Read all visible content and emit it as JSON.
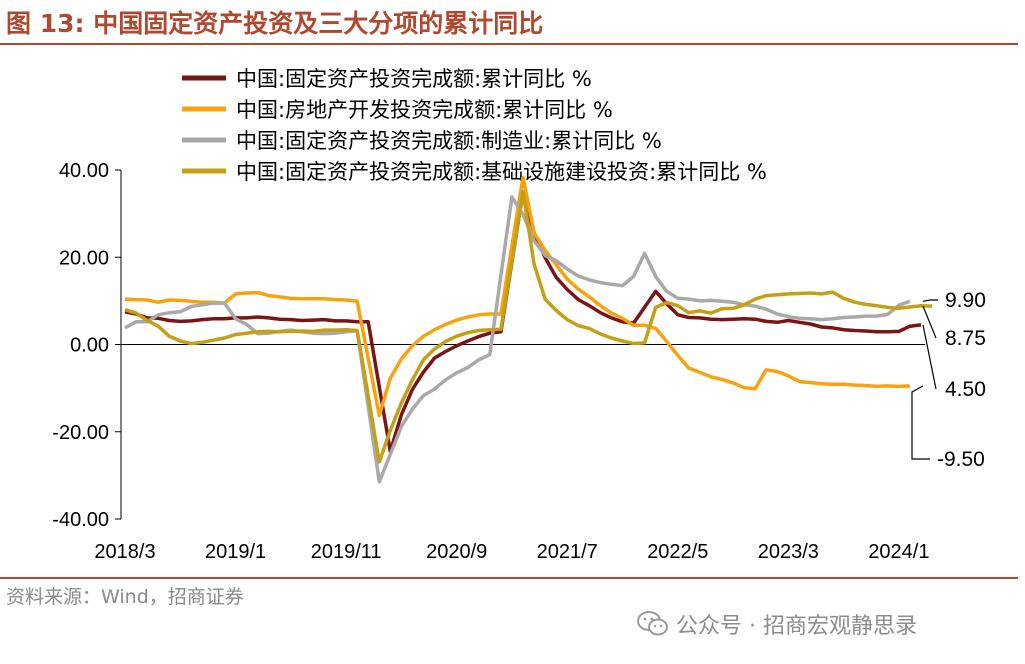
{
  "header": {
    "title": "图 13:  中国固定资产投资及三大分项的累计同比"
  },
  "footer": {
    "source": "资料来源：Wind，招商证券"
  },
  "watermark": {
    "text": "公众号 · 招商宏观静思录",
    "icon": "wechat-icon"
  },
  "colors": {
    "accent": "#B0482F",
    "fai": "#7B1416",
    "real_estate": "#F7A20E",
    "manufacturing": "#A9A9A9",
    "infrastructure": "#C4A014"
  },
  "chart_data": {
    "type": "line",
    "title": "",
    "xlabel": "",
    "ylabel": "",
    "ylim": [
      -40,
      40
    ],
    "yticks": [
      "40.00",
      "20.00",
      "0.00",
      "-20.00",
      "-40.00"
    ],
    "yticks_values": [
      40,
      20,
      0,
      -20,
      -40
    ],
    "xtick_labels": [
      "2018/3",
      "2019/1",
      "2019/11",
      "2020/9",
      "2021/7",
      "2022/5",
      "2023/3",
      "2024/1"
    ],
    "x_start": "2018/3",
    "x_end": "2024/4",
    "grid": false,
    "legend": "top",
    "end_labels": [
      "9.90",
      "8.75",
      "4.50",
      "-9.50"
    ],
    "series": [
      {
        "name": "中国:固定资产投资完成额:累计同比 %",
        "color": "#7B1416",
        "values": [
          7.5,
          7.0,
          6.1,
          6.0,
          5.5,
          5.3,
          5.4,
          5.7,
          5.9,
          5.9,
          6.1,
          6.1,
          6.3,
          6.1,
          5.8,
          5.7,
          5.5,
          5.6,
          5.7,
          5.4,
          5.4,
          5.2,
          5.2,
          null,
          -24.5,
          -16.1,
          -10.3,
          -6.3,
          -3.1,
          -1.6,
          -0.3,
          0.8,
          1.8,
          2.6,
          2.9,
          null,
          35.0,
          25.6,
          19.9,
          15.4,
          12.6,
          10.3,
          8.9,
          7.3,
          6.1,
          5.2,
          4.9,
          null,
          12.2,
          9.3,
          6.8,
          6.2,
          6.1,
          5.8,
          5.7,
          5.8,
          5.9,
          5.8,
          5.3,
          5.1,
          5.5,
          5.1,
          4.7,
          4.0,
          3.8,
          3.4,
          3.2,
          3.1,
          2.9,
          2.9,
          3.0,
          4.2,
          4.5
        ],
        "end_label": "4.50"
      },
      {
        "name": "中国:房地产开发投资完成额:累计同比 %",
        "color": "#F7A20E",
        "values": [
          10.4,
          10.3,
          10.2,
          9.7,
          10.2,
          10.1,
          9.9,
          9.7,
          9.7,
          9.5,
          11.6,
          11.8,
          11.9,
          11.2,
          10.9,
          10.6,
          10.5,
          10.5,
          10.5,
          10.3,
          10.2,
          9.9,
          null,
          -16.3,
          -7.7,
          -3.3,
          -0.3,
          1.9,
          3.4,
          4.6,
          5.6,
          6.3,
          6.8,
          7.0,
          7.0,
          null,
          38.3,
          25.6,
          21.6,
          18.3,
          15.0,
          12.7,
          10.9,
          8.9,
          7.2,
          6.0,
          4.4,
          4.4,
          3.7,
          0.7,
          -2.5,
          -5.4,
          -6.4,
          -7.4,
          -8.0,
          -8.8,
          -9.9,
          -10.1,
          -5.8,
          -6.2,
          -7.2,
          -8.5,
          -8.7,
          -9.0,
          -9.1,
          -9.1,
          -9.3,
          -9.4,
          -9.6,
          -9.5,
          -9.6,
          -9.5
        ],
        "end_label": "-9.50"
      },
      {
        "name": "中国:固定资产投资完成额:制造业:累计同比 %",
        "color": "#A9A9A9",
        "values": [
          3.8,
          5.2,
          5.2,
          6.8,
          7.3,
          7.5,
          8.7,
          9.1,
          9.5,
          9.5,
          5.9,
          4.6,
          2.5,
          2.6,
          3.0,
          3.3,
          2.9,
          2.6,
          2.5,
          2.6,
          2.9,
          3.1,
          null,
          -31.5,
          -25.2,
          -18.8,
          -14.8,
          -11.7,
          -10.2,
          -8.1,
          -6.5,
          -5.3,
          -3.5,
          -2.3,
          null,
          33.8,
          29.8,
          23.8,
          20.4,
          19.2,
          17.3,
          15.7,
          14.8,
          14.2,
          13.8,
          13.5,
          15.6,
          20.9,
          15.6,
          12.2,
          10.6,
          10.4,
          10.0,
          10.1,
          9.9,
          9.7,
          9.1,
          8.8,
          8.1,
          7.0,
          6.4,
          6.0,
          5.9,
          5.7,
          5.9,
          6.2,
          6.3,
          6.5,
          6.5,
          6.9,
          9.0,
          9.9
        ],
        "end_label": "9.90"
      },
      {
        "name": "中国:固定资产投资完成额:基础设施建设投资:累计同比 %",
        "color": "#C4A014",
        "values": [
          8.0,
          7.2,
          5.5,
          4.2,
          1.9,
          0.8,
          0.2,
          0.5,
          1.0,
          1.5,
          2.3,
          2.6,
          2.9,
          3.0,
          2.9,
          3.0,
          3.1,
          3.0,
          3.3,
          3.3,
          3.4,
          3.2,
          null,
          -26.9,
          -19.7,
          -13.4,
          -8.1,
          -3.5,
          -1.0,
          0.7,
          1.9,
          2.7,
          3.2,
          3.4,
          3.5,
          null,
          35.0,
          18.4,
          10.4,
          7.8,
          5.7,
          4.3,
          3.7,
          2.4,
          1.5,
          0.8,
          0.2,
          0.4,
          8.5,
          9.6,
          8.9,
          7.3,
          7.7,
          7.2,
          8.2,
          8.3,
          9.1,
          10.4,
          11.2,
          11.4,
          11.6,
          11.7,
          11.8,
          11.6,
          12.0,
          10.6,
          9.7,
          9.2,
          8.9,
          8.5,
          8.3,
          8.6,
          8.9,
          8.8
        ],
        "end_label": "8.75"
      }
    ]
  }
}
